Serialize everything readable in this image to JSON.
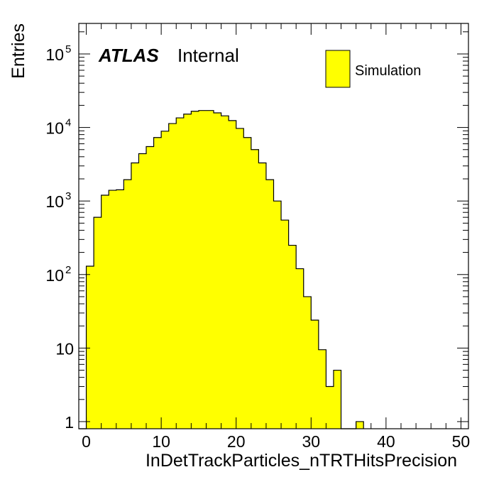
{
  "chart_data": {
    "type": "bar",
    "title": "",
    "xlabel": "InDetTrackParticles_nTRTHitsPrecision",
    "ylabel": "Entries",
    "xlim": [
      -1,
      51
    ],
    "ylim": [
      0.8,
      260000
    ],
    "log_y": true,
    "grid": false,
    "bins": [
      {
        "x": -1,
        "value": 0
      },
      {
        "x": 0,
        "value": 130
      },
      {
        "x": 1,
        "value": 600
      },
      {
        "x": 2,
        "value": 1200
      },
      {
        "x": 3,
        "value": 1400
      },
      {
        "x": 4,
        "value": 1420
      },
      {
        "x": 5,
        "value": 1950
      },
      {
        "x": 6,
        "value": 3300
      },
      {
        "x": 7,
        "value": 4400
      },
      {
        "x": 8,
        "value": 5500
      },
      {
        "x": 9,
        "value": 7300
      },
      {
        "x": 10,
        "value": 8900
      },
      {
        "x": 11,
        "value": 11300
      },
      {
        "x": 12,
        "value": 13500
      },
      {
        "x": 13,
        "value": 15200
      },
      {
        "x": 14,
        "value": 16600
      },
      {
        "x": 15,
        "value": 17000
      },
      {
        "x": 16,
        "value": 17000
      },
      {
        "x": 17,
        "value": 15800
      },
      {
        "x": 18,
        "value": 14400
      },
      {
        "x": 19,
        "value": 12400
      },
      {
        "x": 20,
        "value": 9700
      },
      {
        "x": 21,
        "value": 7300
      },
      {
        "x": 22,
        "value": 5000
      },
      {
        "x": 23,
        "value": 3300
      },
      {
        "x": 24,
        "value": 1950
      },
      {
        "x": 25,
        "value": 1000
      },
      {
        "x": 26,
        "value": 550
      },
      {
        "x": 27,
        "value": 250
      },
      {
        "x": 28,
        "value": 120
      },
      {
        "x": 29,
        "value": 50
      },
      {
        "x": 30,
        "value": 24
      },
      {
        "x": 31,
        "value": 9.5
      },
      {
        "x": 32,
        "value": 3
      },
      {
        "x": 33,
        "value": 5
      },
      {
        "x": 34,
        "value": 0
      },
      {
        "x": 35,
        "value": 0
      },
      {
        "x": 36,
        "value": 1
      }
    ],
    "bin_width": 1,
    "series_color": "#ffff00",
    "edge_color": "#000000",
    "x_ticks": [
      0,
      10,
      20,
      30,
      40,
      50
    ],
    "x_tick_labels": [
      "0",
      "10",
      "20",
      "30",
      "40",
      "50"
    ],
    "y_ticks": [
      1,
      10,
      100,
      1000,
      10000,
      100000
    ],
    "y_tick_labels": [
      {
        "base": "1",
        "exp": ""
      },
      {
        "base": "10",
        "exp": ""
      },
      {
        "base": "10",
        "exp": "2"
      },
      {
        "base": "10",
        "exp": "3"
      },
      {
        "base": "10",
        "exp": "4"
      },
      {
        "base": "10",
        "exp": "5"
      }
    ],
    "annotation": {
      "experiment": "ATLAS",
      "status": "Internal"
    },
    "legend": {
      "entries": [
        {
          "label": "Simulation",
          "color": "#ffff00"
        }
      ],
      "placement": "top-right"
    }
  }
}
